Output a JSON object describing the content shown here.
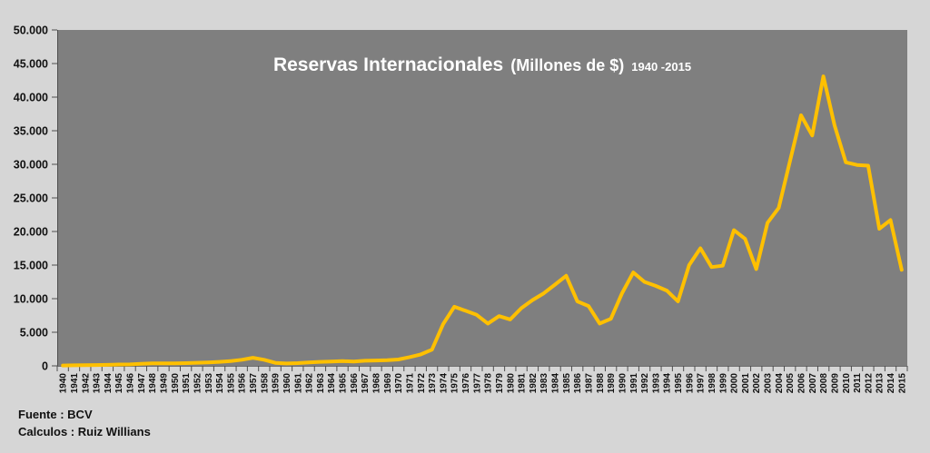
{
  "title": {
    "main": "Reservas Internacionales",
    "units": "(Millones de $)",
    "range": "1940 -2015"
  },
  "footer": {
    "source": "Fuente : BCV",
    "calculations": "Calculos : Ruiz Willians"
  },
  "colors": {
    "background": "#d6d6d6",
    "plot_bg": "#7f7f7f",
    "line": "#ffc000",
    "axis_text": "#111111",
    "title_text": "#ffffff",
    "tick": "#4d4d4d",
    "axis_line": "#6f6f6f"
  },
  "chart_data": {
    "type": "line",
    "title": "Reservas Internacionales (Millones de $) 1940 -2015",
    "series_name": "Reservas Internacionales",
    "xlabel": "",
    "ylabel": "",
    "ylim": [
      0,
      50000
    ],
    "ytick_step": 5000,
    "ytick_labels": [
      "0",
      "5.000",
      "10.000",
      "15.000",
      "20.000",
      "25.000",
      "30.000",
      "35.000",
      "40.000",
      "45.000",
      "50.000"
    ],
    "grid": false,
    "legend": "none",
    "x": [
      1940,
      1941,
      1942,
      1943,
      1944,
      1945,
      1946,
      1947,
      1948,
      1949,
      1950,
      1951,
      1952,
      1953,
      1954,
      1955,
      1956,
      1957,
      1958,
      1959,
      1960,
      1961,
      1962,
      1963,
      1964,
      1965,
      1966,
      1967,
      1968,
      1969,
      1970,
      1971,
      1972,
      1973,
      1974,
      1975,
      1976,
      1977,
      1978,
      1979,
      1980,
      1981,
      1982,
      1983,
      1984,
      1985,
      1986,
      1987,
      1988,
      1989,
      1990,
      1991,
      1992,
      1993,
      1994,
      1995,
      1996,
      1997,
      1998,
      1999,
      2000,
      2001,
      2002,
      2003,
      2004,
      2005,
      2006,
      2007,
      2008,
      2009,
      2010,
      2011,
      2012,
      2013,
      2014,
      2015
    ],
    "values": [
      50,
      80,
      100,
      120,
      150,
      200,
      220,
      300,
      380,
      370,
      370,
      400,
      460,
      520,
      600,
      700,
      900,
      1200,
      900,
      450,
      350,
      400,
      500,
      600,
      650,
      700,
      650,
      750,
      800,
      850,
      950,
      1300,
      1700,
      2400,
      6200,
      8800,
      8200,
      7600,
      6300,
      7400,
      6900,
      8600,
      9800,
      10800,
      12100,
      13400,
      9600,
      8900,
      6300,
      7000,
      10800,
      13900,
      12500,
      11900,
      11200,
      9600,
      15000,
      17500,
      14700,
      14900,
      20200,
      18900,
      14400,
      21300,
      23500,
      30400,
      37300,
      34300,
      43100,
      35800,
      30300,
      29900,
      29800,
      20400,
      21700,
      14300
    ]
  }
}
